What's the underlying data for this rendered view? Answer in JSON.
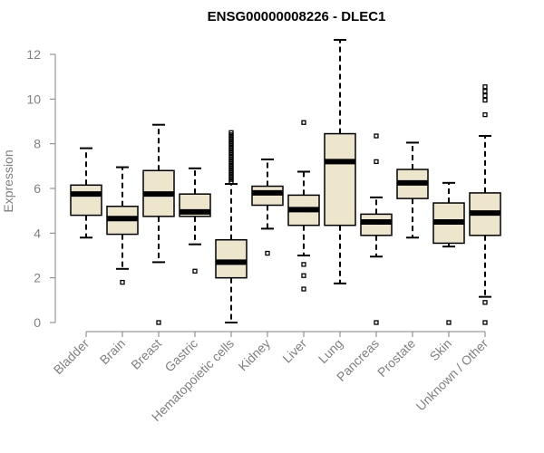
{
  "chart_data": {
    "type": "boxplot",
    "title": "ENSG00000008226 - DLEC1",
    "ylabel": "Expression",
    "xlabel": "",
    "ylim": [
      0,
      12.5
    ],
    "yticks": [
      0,
      2,
      4,
      6,
      8,
      10,
      12
    ],
    "grid": false,
    "box_fill": "#ede6cd",
    "box_stroke": "#000000",
    "categories": [
      "Bladder",
      "Brain",
      "Breast",
      "Gastric",
      "Hematopoietic cells",
      "Kidney",
      "Liver",
      "Lung",
      "Pancreas",
      "Prostate",
      "Skin",
      "Unknown / Other"
    ],
    "boxes": [
      {
        "whisker_low": 3.8,
        "q1": 4.8,
        "median": 5.75,
        "q3": 6.15,
        "whisker_high": 7.8,
        "outliers": []
      },
      {
        "whisker_low": 2.4,
        "q1": 3.95,
        "median": 4.65,
        "q3": 5.2,
        "whisker_high": 6.95,
        "outliers": [
          1.8
        ]
      },
      {
        "whisker_low": 2.7,
        "q1": 4.75,
        "median": 5.75,
        "q3": 6.8,
        "whisker_high": 8.85,
        "outliers": [
          0
        ]
      },
      {
        "whisker_low": 3.5,
        "q1": 4.75,
        "median": 4.95,
        "q3": 5.75,
        "whisker_high": 6.9,
        "outliers": [
          2.3
        ]
      },
      {
        "whisker_low": 0,
        "q1": 2.0,
        "median": 2.7,
        "q3": 3.7,
        "whisker_high": 6.2,
        "outliers": [
          6.3,
          6.4,
          6.5,
          6.6,
          6.7,
          6.8,
          6.9,
          7.0,
          7.1,
          7.2,
          7.3,
          7.4,
          7.5,
          7.6,
          7.7,
          7.8,
          7.9,
          8.0,
          8.1,
          8.2,
          8.3,
          8.4,
          8.5
        ]
      },
      {
        "whisker_low": 4.2,
        "q1": 5.25,
        "median": 5.8,
        "q3": 6.1,
        "whisker_high": 7.3,
        "outliers": [
          3.1
        ]
      },
      {
        "whisker_low": 3.0,
        "q1": 4.35,
        "median": 5.05,
        "q3": 5.7,
        "whisker_high": 6.75,
        "outliers": [
          8.95,
          2.6,
          2.1,
          1.5
        ]
      },
      {
        "whisker_low": 1.75,
        "q1": 4.35,
        "median": 7.2,
        "q3": 8.45,
        "whisker_high": 12.65,
        "outliers": []
      },
      {
        "whisker_low": 2.95,
        "q1": 3.9,
        "median": 4.5,
        "q3": 4.85,
        "whisker_high": 5.6,
        "outliers": [
          8.35,
          7.2,
          0
        ]
      },
      {
        "whisker_low": 3.8,
        "q1": 5.55,
        "median": 6.25,
        "q3": 6.85,
        "whisker_high": 8.05,
        "outliers": []
      },
      {
        "whisker_low": 3.4,
        "q1": 3.55,
        "median": 4.5,
        "q3": 5.35,
        "whisker_high": 6.25,
        "outliers": [
          0
        ]
      },
      {
        "whisker_low": 1.15,
        "q1": 3.9,
        "median": 4.9,
        "q3": 5.8,
        "whisker_high": 8.35,
        "outliers": [
          10.55,
          10.35,
          10.15,
          9.95,
          9.3,
          0.9,
          0
        ]
      }
    ]
  }
}
